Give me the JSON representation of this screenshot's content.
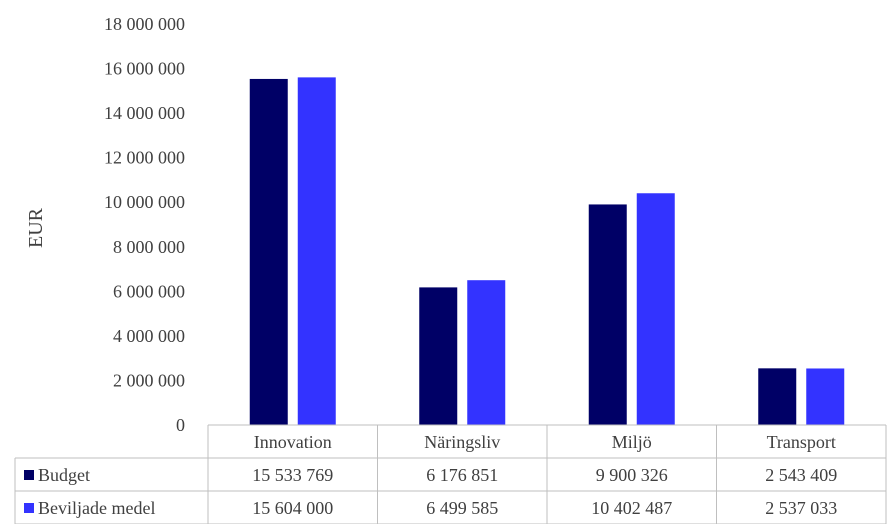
{
  "chart_data": {
    "type": "bar",
    "title": "",
    "xlabel": "",
    "ylabel": "EUR",
    "ylim": [
      0,
      18000000
    ],
    "yticks": [
      0,
      2000000,
      4000000,
      6000000,
      8000000,
      10000000,
      12000000,
      14000000,
      16000000,
      18000000
    ],
    "ytick_labels": [
      "0",
      "2 000 000",
      "4 000 000",
      "6 000 000",
      "8 000 000",
      "10 000 000",
      "12 000 000",
      "14 000 000",
      "16 000 000",
      "18 000 000"
    ],
    "categories": [
      "Innovation",
      "Näringsliv",
      "Miljö",
      "Transport"
    ],
    "grid": false,
    "legend": "data-table-below",
    "series": [
      {
        "name": "Budget",
        "color": "#000066",
        "values": [
          15533769,
          6176851,
          9900326,
          2543409
        ],
        "value_labels": [
          "15 533 769",
          "6 176 851",
          "9 900 326",
          "2 543 409"
        ]
      },
      {
        "name": "Beviljade medel",
        "color": "#3333ff",
        "values": [
          15604000,
          6499585,
          10402487,
          2537033
        ],
        "value_labels": [
          "15 604 000",
          "6 499 585",
          "10 402 487",
          "2 537 033"
        ]
      }
    ]
  }
}
